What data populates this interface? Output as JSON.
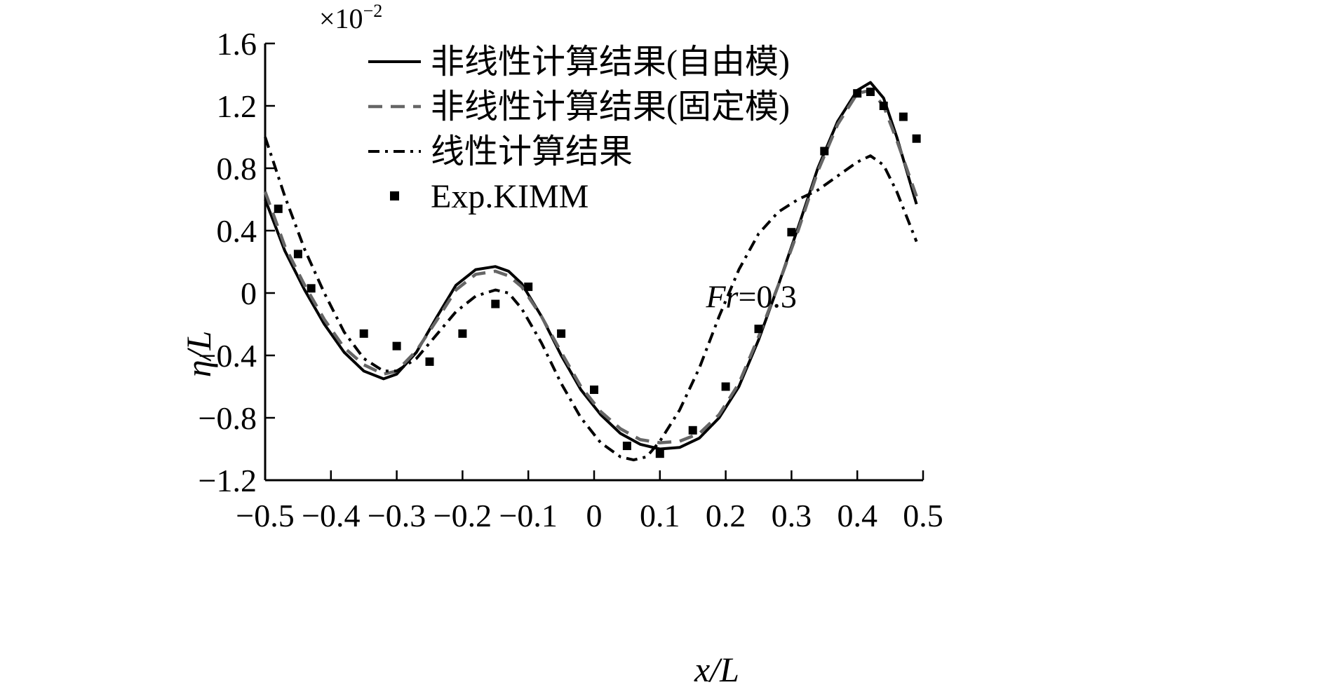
{
  "chart_data": {
    "type": "line",
    "xlabel": "x/L",
    "ylabel": "η/L",
    "xlim": [
      -0.5,
      0.5
    ],
    "ylim": [
      -1.2,
      1.6
    ],
    "y_scale_factor": "×10",
    "y_scale_exponent": "−2",
    "x_ticks": [
      -0.5,
      -0.4,
      -0.3,
      -0.2,
      -0.1,
      0,
      0.1,
      0.2,
      0.3,
      0.4,
      0.5
    ],
    "x_tick_labels": [
      "−0.5",
      "−0.4",
      "−0.3",
      "−0.2",
      "−0.1",
      "0",
      "0.1",
      "0.2",
      "0.3",
      "0.4",
      "0.5"
    ],
    "y_ticks": [
      -1.2,
      -0.8,
      -0.4,
      0,
      0.4,
      0.8,
      1.2,
      1.6
    ],
    "y_tick_labels": [
      "−1.2",
      "−0.8",
      "−0.4",
      "0",
      "0.4",
      "0.8",
      "1.2",
      "1.6"
    ],
    "annotation": {
      "prefix": "Fr",
      "suffix": "=0.3",
      "x": 0.17,
      "y": -0.02
    },
    "legend_position": "top-center",
    "grid": false,
    "series": [
      {
        "name": "非线性计算结果(自由模)",
        "style": "solid",
        "color": "#000000",
        "x": [
          -0.5,
          -0.47,
          -0.44,
          -0.41,
          -0.38,
          -0.35,
          -0.32,
          -0.3,
          -0.27,
          -0.24,
          -0.21,
          -0.18,
          -0.15,
          -0.13,
          -0.11,
          -0.08,
          -0.05,
          -0.02,
          0.01,
          0.04,
          0.07,
          0.1,
          0.13,
          0.16,
          0.19,
          0.22,
          0.25,
          0.28,
          0.31,
          0.34,
          0.37,
          0.4,
          0.42,
          0.44,
          0.46,
          0.49
        ],
        "y": [
          0.6,
          0.27,
          0.02,
          -0.2,
          -0.38,
          -0.5,
          -0.55,
          -0.52,
          -0.38,
          -0.16,
          0.05,
          0.15,
          0.17,
          0.14,
          0.06,
          -0.15,
          -0.4,
          -0.62,
          -0.78,
          -0.9,
          -0.97,
          -1.0,
          -0.99,
          -0.93,
          -0.8,
          -0.6,
          -0.3,
          0.05,
          0.42,
          0.8,
          1.1,
          1.3,
          1.35,
          1.25,
          1.0,
          0.57
        ]
      },
      {
        "name": "非线性计算结果(固定模)",
        "style": "dashed",
        "color": "#666666",
        "x": [
          -0.5,
          -0.47,
          -0.44,
          -0.41,
          -0.38,
          -0.35,
          -0.32,
          -0.3,
          -0.27,
          -0.24,
          -0.21,
          -0.18,
          -0.15,
          -0.13,
          -0.11,
          -0.08,
          -0.05,
          -0.02,
          0.01,
          0.04,
          0.07,
          0.1,
          0.13,
          0.16,
          0.19,
          0.22,
          0.25,
          0.28,
          0.31,
          0.34,
          0.37,
          0.4,
          0.42,
          0.44,
          0.46,
          0.49
        ],
        "y": [
          0.65,
          0.3,
          0.05,
          -0.17,
          -0.35,
          -0.46,
          -0.52,
          -0.5,
          -0.37,
          -0.18,
          0.02,
          0.12,
          0.14,
          0.11,
          0.04,
          -0.15,
          -0.38,
          -0.6,
          -0.76,
          -0.87,
          -0.94,
          -0.96,
          -0.95,
          -0.9,
          -0.78,
          -0.58,
          -0.28,
          0.05,
          0.4,
          0.78,
          1.08,
          1.28,
          1.3,
          1.2,
          0.98,
          0.62
        ]
      },
      {
        "name": "线性计算结果",
        "style": "dashdot",
        "color": "#000000",
        "x": [
          -0.5,
          -0.47,
          -0.44,
          -0.41,
          -0.38,
          -0.35,
          -0.32,
          -0.3,
          -0.27,
          -0.24,
          -0.21,
          -0.18,
          -0.15,
          -0.13,
          -0.11,
          -0.08,
          -0.05,
          -0.02,
          0.01,
          0.04,
          0.06,
          0.08,
          0.1,
          0.13,
          0.16,
          0.19,
          0.22,
          0.25,
          0.28,
          0.31,
          0.34,
          0.37,
          0.4,
          0.42,
          0.44,
          0.46,
          0.49
        ],
        "y": [
          1.0,
          0.62,
          0.28,
          0.0,
          -0.25,
          -0.42,
          -0.5,
          -0.5,
          -0.42,
          -0.27,
          -0.12,
          -0.02,
          0.02,
          0.0,
          -0.1,
          -0.32,
          -0.58,
          -0.8,
          -0.96,
          -1.05,
          -1.07,
          -1.05,
          -0.95,
          -0.75,
          -0.48,
          -0.15,
          0.15,
          0.38,
          0.52,
          0.6,
          0.66,
          0.75,
          0.84,
          0.88,
          0.82,
          0.65,
          0.33
        ]
      },
      {
        "name": "Exp.KIMM",
        "style": "markers",
        "color": "#000000",
        "x": [
          -0.48,
          -0.45,
          -0.43,
          -0.35,
          -0.3,
          -0.25,
          -0.2,
          -0.15,
          -0.1,
          -0.05,
          0.0,
          0.05,
          0.1,
          0.15,
          0.2,
          0.25,
          0.3,
          0.35,
          0.4,
          0.42,
          0.44,
          0.47,
          0.49
        ],
        "y": [
          0.54,
          0.25,
          0.03,
          -0.26,
          -0.34,
          -0.44,
          -0.26,
          -0.07,
          0.04,
          -0.26,
          -0.62,
          -0.98,
          -1.03,
          -0.88,
          -0.6,
          -0.23,
          0.39,
          0.91,
          1.28,
          1.29,
          1.2,
          1.13,
          0.99
        ]
      }
    ]
  }
}
